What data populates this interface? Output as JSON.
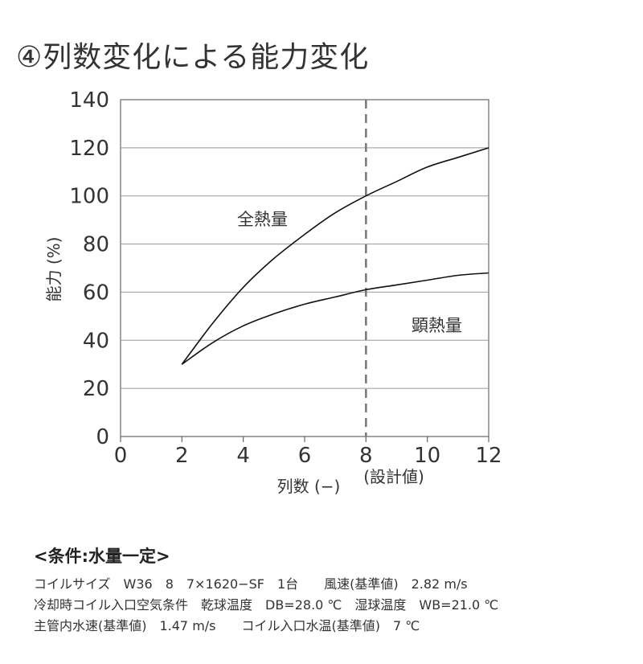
{
  "title": "④列数変化による能力変化",
  "chart_data": {
    "type": "line",
    "xlabel": "列数 (−)",
    "ylabel": "能力 (%)",
    "xlim": [
      0,
      12
    ],
    "ylim": [
      0,
      140
    ],
    "x_ticks": [
      0,
      2,
      4,
      6,
      8,
      10,
      12
    ],
    "y_ticks": [
      0,
      20,
      40,
      60,
      80,
      100,
      120,
      140
    ],
    "grid": "horizontal",
    "reference_line": {
      "x": 8,
      "label": "(設計値)"
    },
    "series": [
      {
        "name": "全熱量",
        "x": [
          2,
          3,
          4,
          5,
          6,
          7,
          8,
          9,
          10,
          11,
          12
        ],
        "y": [
          30,
          47,
          62,
          74,
          84,
          93,
          100,
          106,
          112,
          116,
          120
        ]
      },
      {
        "name": "顕熱量",
        "x": [
          2,
          3,
          4,
          5,
          6,
          7,
          8,
          9,
          10,
          11,
          12
        ],
        "y": [
          30,
          39,
          46,
          51,
          55,
          58,
          61,
          63,
          65,
          67,
          68
        ]
      }
    ]
  },
  "conditions": {
    "heading": "<条件:水量一定>",
    "lines": [
      "コイルサイズ　W36　8　7×1620−SF　1台　　風速(基準値)　2.82 m/s",
      "冷却時コイル入口空気条件　乾球温度　DB=28.0 ℃　湿球温度　WB=21.0 ℃",
      "主管内水速(基準値)　1.47 m/s　　コイル入口水温(基準値)　7 ℃"
    ]
  }
}
